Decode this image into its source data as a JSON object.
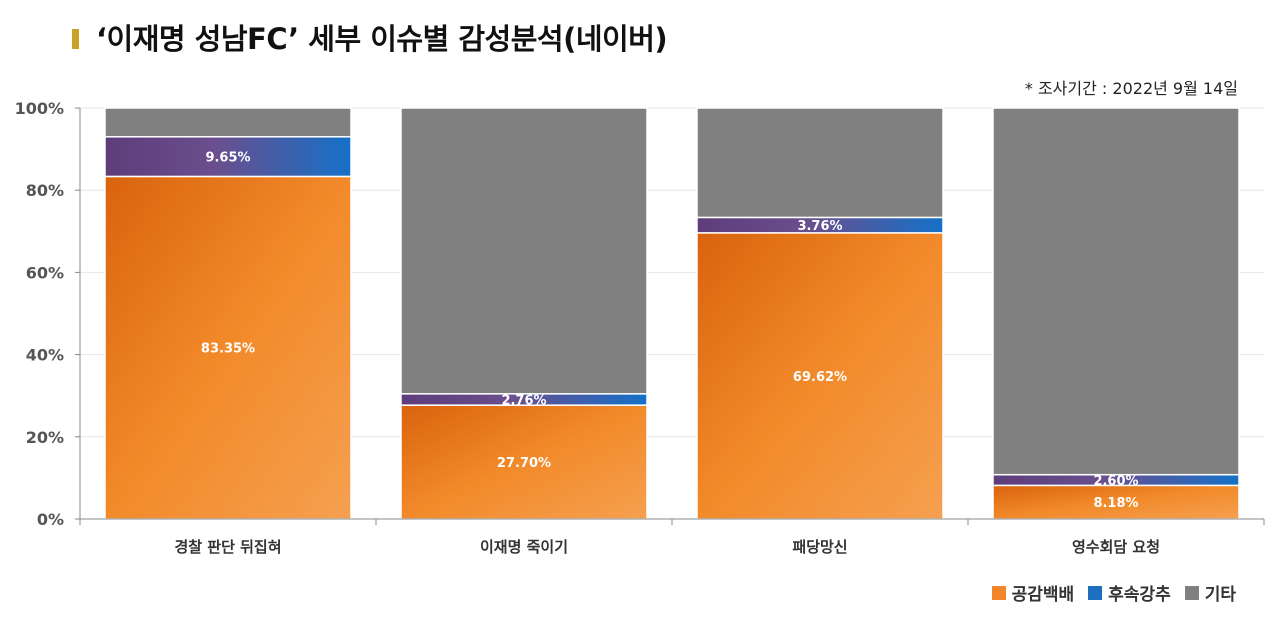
{
  "title": "‘이재명 성남FC’ 세부 이슈별 감성분석(네이버)",
  "note": "* 조사기간 : 2022년 9월 14일",
  "chart_data": {
    "type": "bar",
    "stacked": true,
    "categories": [
      "경찰 판단 뒤집혀",
      "이재명 죽이기",
      "패당망신",
      "영수회담 요청"
    ],
    "series": [
      {
        "name": "공감백배",
        "color": "#f0852a",
        "values": [
          83.35,
          27.7,
          69.62,
          8.18
        ],
        "labels": [
          "83.35%",
          "27.70%",
          "69.62%",
          "8.18%"
        ]
      },
      {
        "name": "후속강추",
        "color": "#1e6fc0",
        "values": [
          9.65,
          2.76,
          3.76,
          2.6
        ],
        "labels": [
          "9.65%",
          "2.76%",
          "3.76%",
          "2.60%"
        ]
      },
      {
        "name": "기타",
        "color": "#808080",
        "values": [
          7.0,
          69.54,
          26.62,
          89.22
        ],
        "labels": [
          "",
          "",
          "",
          ""
        ]
      }
    ],
    "ylim": [
      0,
      100
    ],
    "yticks": [
      "0%",
      "20%",
      "40%",
      "60%",
      "80%",
      "100%"
    ],
    "grid": true,
    "legend_position": "bottom-right"
  }
}
